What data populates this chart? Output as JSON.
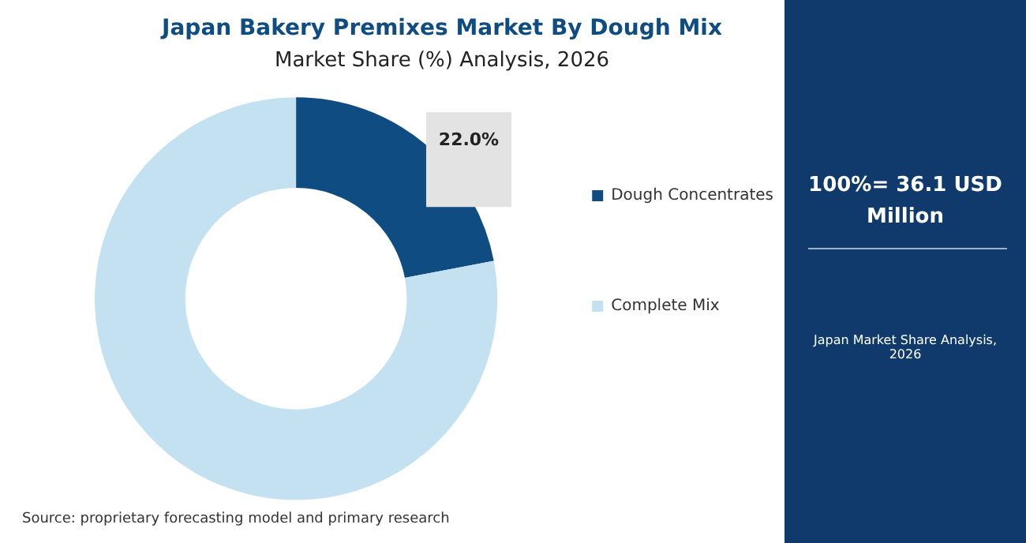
{
  "chart_data": {
    "type": "donut",
    "title": "Japan Bakery Premixes Market By Dough Mix",
    "subtitle": "Market Share (%) Analysis, 2026",
    "categories": [
      "Dough Concentrates",
      "Complete Mix"
    ],
    "values": [
      22.0,
      78.0
    ],
    "colors": [
      "#0f4c81",
      "#c4e1f2"
    ],
    "value_labels": [
      "22.0%",
      null
    ],
    "legend": "right",
    "annotations": [
      "100%= 36.1 USD Million",
      "Japan Market Share Analysis, 2026",
      "Source: proprietary forecasting model and primary research"
    ]
  }
}
